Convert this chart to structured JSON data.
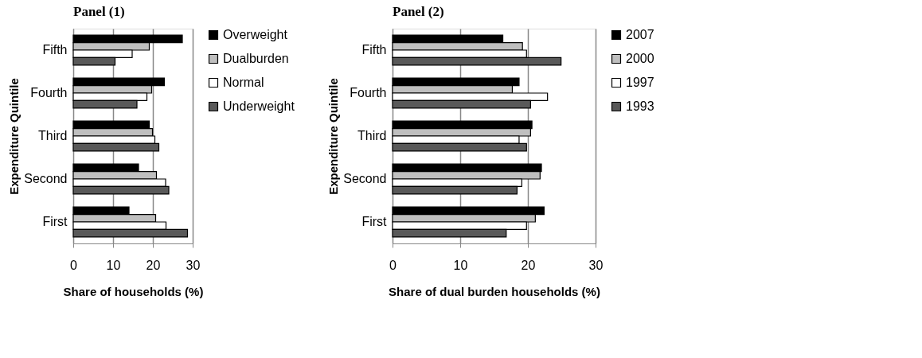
{
  "chart_data": [
    {
      "type": "bar",
      "orientation": "horizontal",
      "title": "Panel (1)",
      "xlabel": "Share of households (%)",
      "ylabel": "Expenditure Quintile",
      "categories": [
        "Fifth",
        "Fourth",
        "Third",
        "Second",
        "First"
      ],
      "series": [
        {
          "name": "Overweight",
          "color": "#000000",
          "values": [
            27.4,
            22.9,
            19.1,
            16.4,
            14.0
          ]
        },
        {
          "name": "Dualburden",
          "color": "#bfbfbf",
          "values": [
            19.1,
            19.7,
            19.9,
            20.9,
            20.7
          ]
        },
        {
          "name": "Normal",
          "color": "#ffffff",
          "values": [
            14.8,
            18.5,
            20.5,
            23.2,
            23.3
          ]
        },
        {
          "name": "Underweight",
          "color": "#595959",
          "values": [
            10.5,
            16.0,
            21.5,
            24.0,
            28.7
          ]
        }
      ],
      "xlim": [
        0,
        30
      ],
      "xticks": [
        0,
        10,
        20,
        30
      ],
      "grid": "x",
      "legend": "right"
    },
    {
      "type": "bar",
      "orientation": "horizontal",
      "title": "Panel (2)",
      "xlabel": "Share of dual burden households (%)",
      "ylabel": "Expenditure Quintile",
      "categories": [
        "Fifth",
        "Fourth",
        "Third",
        "Second",
        "First"
      ],
      "series": [
        {
          "name": "2007",
          "color": "#000000",
          "values": [
            16.3,
            18.7,
            20.6,
            22.0,
            22.4
          ]
        },
        {
          "name": "2000",
          "color": "#bfbfbf",
          "values": [
            19.2,
            17.7,
            20.4,
            21.8,
            21.1
          ]
        },
        {
          "name": "1997",
          "color": "#ffffff",
          "values": [
            19.8,
            22.9,
            18.7,
            19.1,
            19.8
          ]
        },
        {
          "name": "1993",
          "color": "#595959",
          "values": [
            24.9,
            20.4,
            19.8,
            18.4,
            16.8
          ]
        }
      ],
      "xlim": [
        0,
        30
      ],
      "xticks": [
        0,
        10,
        20,
        30
      ],
      "grid": "x",
      "legend": "right"
    }
  ]
}
